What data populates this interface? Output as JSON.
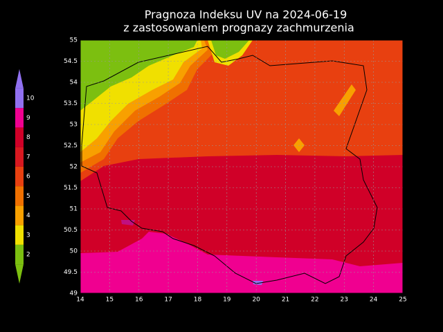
{
  "map": {
    "title": [
      "Pragnoza Indeksu UV na 2024-06-19",
      "z zastosowaniem prognazy zachmurzenia"
    ],
    "lon_ticks": [
      14,
      15,
      16,
      17,
      18,
      19,
      20,
      21,
      22,
      23,
      24,
      25
    ],
    "lat_ticks": [
      49,
      49.5,
      50,
      50.5,
      51,
      51.5,
      52,
      52.5,
      53,
      53.5,
      54,
      54.5,
      55
    ],
    "legend": {
      "labels": [
        2,
        3,
        4,
        5,
        6,
        7,
        8,
        9,
        10
      ],
      "colors": [
        "#7cbf10",
        "#f0e000",
        "#f8a000",
        "#f07000",
        "#e84010",
        "#d81820",
        "#d00028",
        "#f00090",
        "#9070f0"
      ]
    }
  }
}
